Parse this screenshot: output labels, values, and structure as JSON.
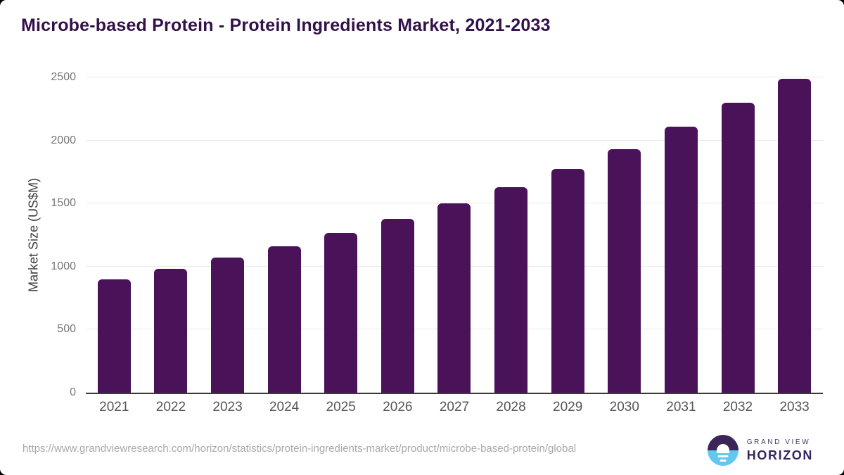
{
  "title": "Microbe-based Protein - Protein Ingredients Market, 2021-2033",
  "y_axis": {
    "label": "Market Size (US$M)",
    "ticks": [
      0,
      500,
      1000,
      1500,
      2000,
      2500
    ]
  },
  "footer": {
    "source_url": "https://www.grandviewresearch.com/horizon/statistics/protein-ingredients-market/product/microbe-based-protein/global"
  },
  "logo": {
    "top_text": "GRAND VIEW",
    "bottom_text": "HORIZON"
  },
  "colors": {
    "bar": "#4a1259",
    "title_text": "#321049",
    "axis_title": "#3d3d3d",
    "grid": "#e9e9e9",
    "axis": "#3a3a3a",
    "y_tick": "#767676",
    "x_tick": "#555555",
    "url_text": "#a8a8a8",
    "logo_purple": "#3b2559",
    "logo_blue": "#62c8f0",
    "logo_text_top": "#473a66",
    "logo_text_bottom": "#372560"
  },
  "chart_data": {
    "type": "bar",
    "categories": [
      "2021",
      "2022",
      "2023",
      "2024",
      "2025",
      "2026",
      "2027",
      "2028",
      "2029",
      "2030",
      "2031",
      "2032",
      "2033"
    ],
    "values": [
      900,
      985,
      1070,
      1160,
      1265,
      1380,
      1500,
      1630,
      1775,
      1930,
      2110,
      2300,
      2490
    ],
    "title": "Microbe-based Protein - Protein Ingredients Market, 2021-2033",
    "xlabel": "",
    "ylabel": "Market Size (US$M)",
    "ylim": [
      0,
      2500
    ],
    "grid": true,
    "legend": false,
    "bar_color": "#4a1259"
  }
}
